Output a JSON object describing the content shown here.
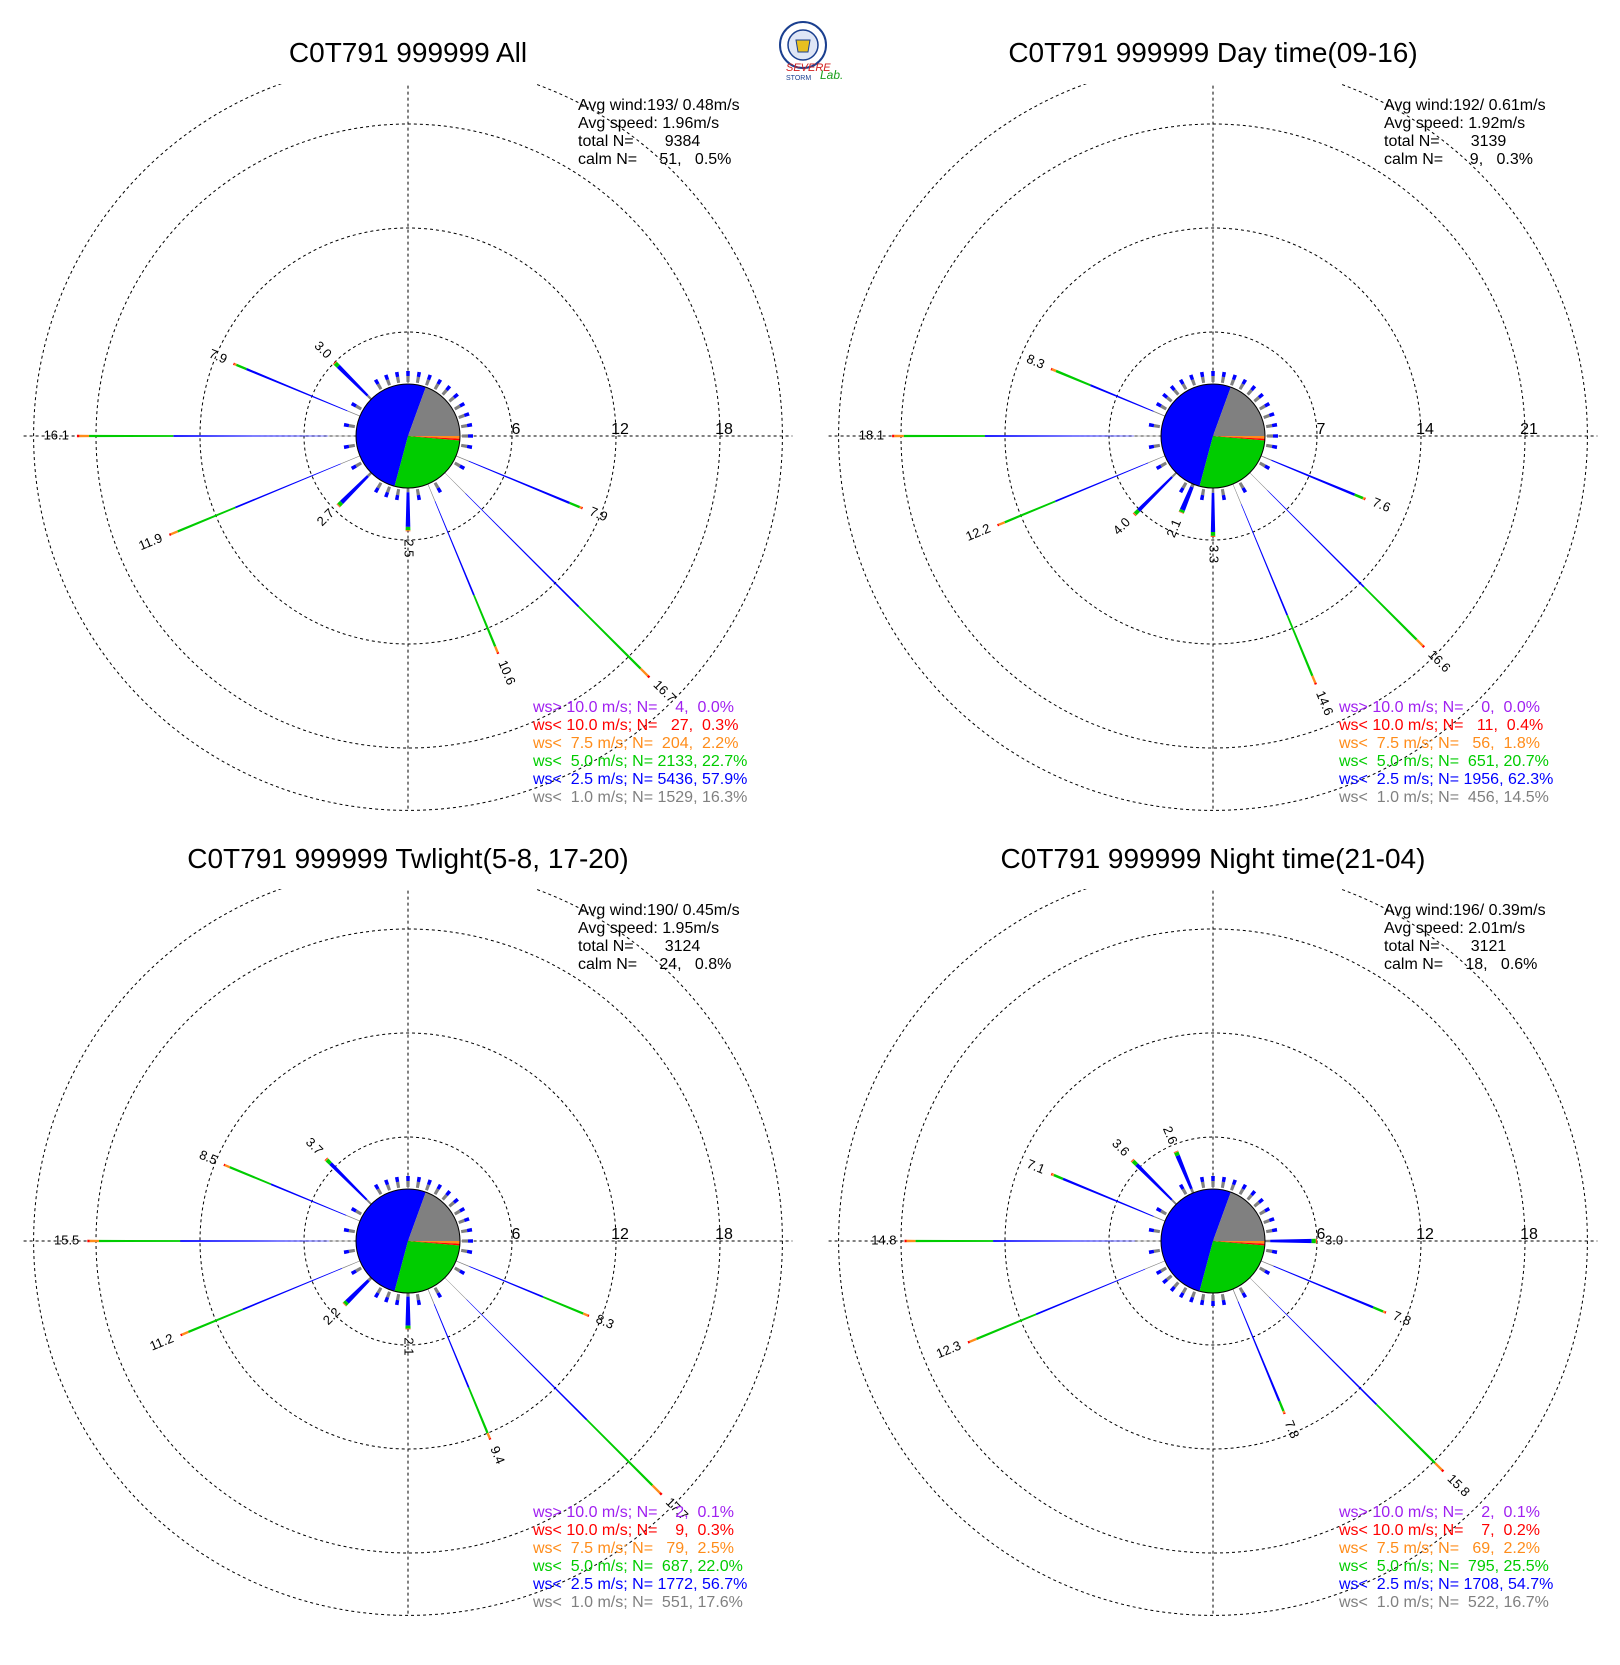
{
  "logo": {
    "text_top": "SEVERE",
    "text_bottom": "STORM",
    "text_lab": "Lab.",
    "colors": {
      "seal": "#1a3f8f",
      "severe": "#d22020",
      "lab": "#1a9e1a"
    }
  },
  "colors": {
    "ws_gt_10": "#a020f0",
    "ws_lt_10": "#ff0000",
    "ws_lt_7_5": "#ff8c1a",
    "ws_lt_5": "#00cc00",
    "ws_lt_2_5": "#0000ff",
    "ws_lt_1": "#808080",
    "grid": "#000000"
  },
  "chart_data": [
    {
      "type": "windrose",
      "title": "C0T791 999999 All",
      "stats": {
        "avg_wind": "Avg wind:193/ 0.48m/s",
        "avg_speed": "Avg speed: 1.96m/s",
        "total": "total N=       9384",
        "calm": "calm N=     51,   0.5%"
      },
      "ring_labels": [
        "6",
        "12",
        "18"
      ],
      "rmax": 18,
      "pie_fractions": {
        "blue": 0.579,
        "green": 0.227,
        "gray": 0.163,
        "orange": 0.022,
        "red": 0.003
      },
      "spokes": [
        {
          "dir": 270,
          "value": 16.1,
          "label": "16.1"
        },
        {
          "dir": 292.5,
          "value": 7.9,
          "label": "7.9"
        },
        {
          "dir": 315,
          "value": 3.0,
          "label": "3.0"
        },
        {
          "dir": 247.5,
          "value": 11.9,
          "label": "11.9"
        },
        {
          "dir": 225,
          "value": 2.7,
          "label": "2.7"
        },
        {
          "dir": 112.5,
          "value": 7.9,
          "label": "7.9"
        },
        {
          "dir": 135,
          "value": 16.7,
          "label": "16.7"
        },
        {
          "dir": 157.5,
          "value": 10.6,
          "label": "10.6"
        },
        {
          "dir": 180,
          "value": 2.5,
          "label": "2.5"
        }
      ],
      "legend": [
        {
          "key": "ws_gt_10",
          "text": "ws> 10.0 m/s; N=    4,  0.0%"
        },
        {
          "key": "ws_lt_10",
          "text": "ws< 10.0 m/s; N=   27,  0.3%"
        },
        {
          "key": "ws_lt_7_5",
          "text": "ws<  7.5 m/s; N=  204,  2.2%"
        },
        {
          "key": "ws_lt_5",
          "text": "ws<  5.0 m/s; N= 2133, 22.7%"
        },
        {
          "key": "ws_lt_2_5",
          "text": "ws<  2.5 m/s; N= 5436, 57.9%"
        },
        {
          "key": "ws_lt_1",
          "text": "ws<  1.0 m/s; N= 1529, 16.3%"
        }
      ]
    },
    {
      "type": "windrose",
      "title": "C0T791 999999 Day time(09-16)",
      "stats": {
        "avg_wind": "Avg wind:192/ 0.61m/s",
        "avg_speed": "Avg speed: 1.92m/s",
        "total": "total N=       3139",
        "calm": "calm N=      9,   0.3%"
      },
      "ring_labels": [
        "7",
        "14",
        "21"
      ],
      "rmax": 21,
      "pie_fractions": {
        "blue": 0.623,
        "green": 0.207,
        "gray": 0.145,
        "orange": 0.018,
        "red": 0.004
      },
      "spokes": [
        {
          "dir": 270,
          "value": 18.1,
          "label": "18.1"
        },
        {
          "dir": 292.5,
          "value": 8.3,
          "label": "8.3"
        },
        {
          "dir": 247.5,
          "value": 12.2,
          "label": "12.2"
        },
        {
          "dir": 225,
          "value": 4.0,
          "label": "4.0"
        },
        {
          "dir": 202.5,
          "value": 2.1,
          "label": "2.1"
        },
        {
          "dir": 112.5,
          "value": 7.6,
          "label": "7.6"
        },
        {
          "dir": 135,
          "value": 16.6,
          "label": "16.6"
        },
        {
          "dir": 157.5,
          "value": 14.6,
          "label": "14.6"
        },
        {
          "dir": 180,
          "value": 3.3,
          "label": "3.3"
        }
      ],
      "legend": [
        {
          "key": "ws_gt_10",
          "text": "ws> 10.0 m/s; N=    0,  0.0%"
        },
        {
          "key": "ws_lt_10",
          "text": "ws< 10.0 m/s; N=   11,  0.4%"
        },
        {
          "key": "ws_lt_7_5",
          "text": "ws<  7.5 m/s; N=   56,  1.8%"
        },
        {
          "key": "ws_lt_5",
          "text": "ws<  5.0 m/s; N=  651, 20.7%"
        },
        {
          "key": "ws_lt_2_5",
          "text": "ws<  2.5 m/s; N= 1956, 62.3%"
        },
        {
          "key": "ws_lt_1",
          "text": "ws<  1.0 m/s; N=  456, 14.5%"
        }
      ]
    },
    {
      "type": "windrose",
      "title": "C0T791 999999 Twlight(5-8, 17-20)",
      "stats": {
        "avg_wind": "Avg wind:190/ 0.45m/s",
        "avg_speed": "Avg speed: 1.95m/s",
        "total": "total N=       3124",
        "calm": "calm N=     24,   0.8%"
      },
      "ring_labels": [
        "6",
        "12",
        "18"
      ],
      "rmax": 18,
      "pie_fractions": {
        "blue": 0.567,
        "green": 0.22,
        "gray": 0.176,
        "orange": 0.025,
        "red": 0.003
      },
      "spokes": [
        {
          "dir": 270,
          "value": 15.5,
          "label": "15.5"
        },
        {
          "dir": 292.5,
          "value": 8.5,
          "label": "8.5"
        },
        {
          "dir": 315,
          "value": 3.7,
          "label": "3.7"
        },
        {
          "dir": 247.5,
          "value": 11.2,
          "label": "11.2"
        },
        {
          "dir": 225,
          "value": 2.2,
          "label": "2.2"
        },
        {
          "dir": 112.5,
          "value": 8.3,
          "label": "8.3"
        },
        {
          "dir": 135,
          "value": 17.7,
          "label": "17.7"
        },
        {
          "dir": 157.5,
          "value": 9.4,
          "label": "9.4"
        },
        {
          "dir": 180,
          "value": 2.1,
          "label": "2.1"
        }
      ],
      "legend": [
        {
          "key": "ws_gt_10",
          "text": "ws> 10.0 m/s; N=    2,  0.1%"
        },
        {
          "key": "ws_lt_10",
          "text": "ws< 10.0 m/s; N=    9,  0.3%"
        },
        {
          "key": "ws_lt_7_5",
          "text": "ws<  7.5 m/s; N=   79,  2.5%"
        },
        {
          "key": "ws_lt_5",
          "text": "ws<  5.0 m/s; N=  687, 22.0%"
        },
        {
          "key": "ws_lt_2_5",
          "text": "ws<  2.5 m/s; N= 1772, 56.7%"
        },
        {
          "key": "ws_lt_1",
          "text": "ws<  1.0 m/s; N=  551, 17.6%"
        }
      ]
    },
    {
      "type": "windrose",
      "title": "C0T791 999999 Night time(21-04)",
      "stats": {
        "avg_wind": "Avg wind:196/ 0.39m/s",
        "avg_speed": "Avg speed: 2.01m/s",
        "total": "total N=       3121",
        "calm": "calm N=     18,   0.6%"
      },
      "ring_labels": [
        "6",
        "12",
        "18"
      ],
      "rmax": 18,
      "pie_fractions": {
        "blue": 0.547,
        "green": 0.255,
        "gray": 0.167,
        "orange": 0.022,
        "red": 0.002
      },
      "spokes": [
        {
          "dir": 270,
          "value": 14.8,
          "label": "14.8"
        },
        {
          "dir": 292.5,
          "value": 7.1,
          "label": "7.1"
        },
        {
          "dir": 315,
          "value": 3.6,
          "label": "3.6"
        },
        {
          "dir": 337.5,
          "value": 2.6,
          "label": "2.6"
        },
        {
          "dir": 247.5,
          "value": 12.3,
          "label": "12.3"
        },
        {
          "dir": 90,
          "value": 3.0,
          "label": "3.0"
        },
        {
          "dir": 112.5,
          "value": 7.8,
          "label": "7.8"
        },
        {
          "dir": 135,
          "value": 15.8,
          "label": "15.8"
        },
        {
          "dir": 157.5,
          "value": 7.8,
          "label": "7.8"
        }
      ],
      "legend": [
        {
          "key": "ws_gt_10",
          "text": "ws> 10.0 m/s; N=    2,  0.1%"
        },
        {
          "key": "ws_lt_10",
          "text": "ws< 10.0 m/s; N=    7,  0.2%"
        },
        {
          "key": "ws_lt_7_5",
          "text": "ws<  7.5 m/s; N=   69,  2.2%"
        },
        {
          "key": "ws_lt_5",
          "text": "ws<  5.0 m/s; N=  795, 25.5%"
        },
        {
          "key": "ws_lt_2_5",
          "text": "ws<  2.5 m/s; N= 1708, 54.7%"
        },
        {
          "key": "ws_lt_1",
          "text": "ws<  1.0 m/s; N=  522, 16.7%"
        }
      ]
    }
  ]
}
